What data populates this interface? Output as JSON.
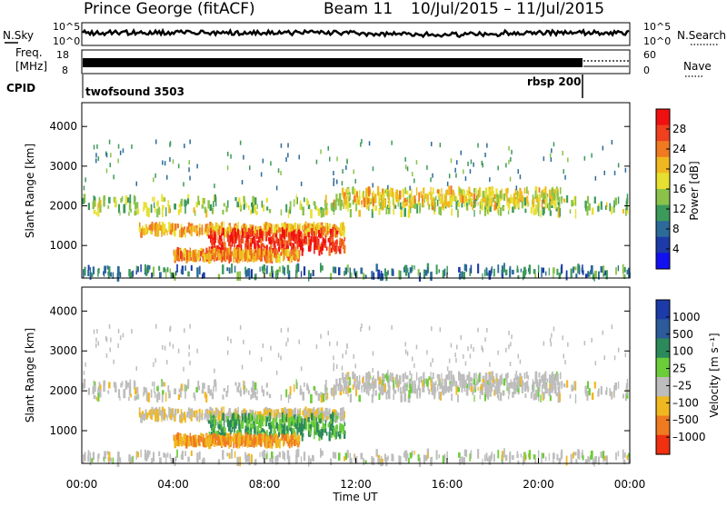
{
  "header": {
    "station": "Prince George (fitACF)",
    "beam": "Beam 11",
    "date_range": "10/Jul/2015 – 11/Jul/2015"
  },
  "noise_panel": {
    "left_label": "N.Sky",
    "right_label": "N.Search",
    "left_ticks": [
      "10^5",
      "10^0"
    ],
    "right_ticks": [
      "10^5",
      "10^0"
    ]
  },
  "freq_panel": {
    "left_label_1": "Freq.",
    "left_label_2": "[MHz]",
    "right_label": "Nave",
    "left_ticks": [
      "18",
      "8"
    ],
    "right_ticks": [
      "60",
      "0"
    ]
  },
  "cpid_panel": {
    "label": "CPID",
    "programs": [
      "twofsound 3503",
      "rbsp 200"
    ],
    "switch_hour": 22
  },
  "power_panel": {
    "ylabel": "Slant Range [km]",
    "colorbar_label": "Power [dB]",
    "colorbar_ticks": [
      "28",
      "24",
      "20",
      "16",
      "12",
      "8",
      "4"
    ],
    "colorbar_colors": [
      "#f01010",
      "#f04020",
      "#f07a20",
      "#f0b820",
      "#e8e030",
      "#8bc34a",
      "#3c9a5a",
      "#2c6a9a",
      "#1c3aa8",
      "#1010f0"
    ]
  },
  "velocity_panel": {
    "ylabel": "Slant Range [km]",
    "colorbar_label": "Velocity [m s⁻¹]",
    "colorbar_ticks": [
      "1000",
      "500",
      "100",
      "25",
      "–25",
      "–100",
      "–500",
      "–1000"
    ],
    "colorbar_colors": [
      "#1c3aa8",
      "#2c5a9a",
      "#2c8a5a",
      "#6ccc3a",
      "#bdbdbd",
      "#f0b820",
      "#f07a20",
      "#f03010"
    ]
  },
  "x_axis": {
    "label": "Time UT",
    "ticks": [
      "00:00",
      "04:00",
      "08:00",
      "12:00",
      "16:00",
      "20:00",
      "00:00"
    ]
  },
  "chart_data": {
    "type": "heatmap",
    "title": "Prince George (fitACF) Beam 11 10/Jul/2015 – 11/Jul/2015",
    "xlabel": "Time UT",
    "ylabel": "Slant Range [km]",
    "xlim_hours": [
      0,
      24
    ],
    "ylim_km": [
      180,
      4600
    ],
    "yticks": [
      1000,
      2000,
      3000,
      4000
    ],
    "power_db_range": [
      0,
      30
    ],
    "velocity_range": [
      -1000,
      1000
    ],
    "scatter_features": [
      {
        "name": "near-range band",
        "time_start_h": 2.5,
        "time_end_h": 11.5,
        "range_km": [
          1300,
          1500
        ],
        "power_db": 20,
        "velocity": -25
      },
      {
        "name": "intense patch",
        "time_start_h": 5.5,
        "time_end_h": 11.5,
        "range_km": [
          850,
          1350
        ],
        "power_db": 28,
        "velocity": 100
      },
      {
        "name": "low-range patch",
        "time_start_h": 4.0,
        "time_end_h": 9.5,
        "range_km": [
          650,
          850
        ],
        "power_db": 22,
        "velocity": -100
      },
      {
        "name": "upper band",
        "time_start_h": 0,
        "time_end_h": 24,
        "range_km": [
          1800,
          2200
        ],
        "power_db": 14,
        "velocity": 0
      },
      {
        "name": "afternoon band",
        "time_start_h": 11,
        "time_end_h": 21,
        "range_km": [
          2000,
          2400
        ],
        "power_db": 18,
        "velocity": 0
      },
      {
        "name": "ground scatter floor",
        "time_start_h": 0,
        "time_end_h": 24,
        "range_km": [
          200,
          450
        ],
        "power_db": 8,
        "velocity": 0
      }
    ]
  }
}
